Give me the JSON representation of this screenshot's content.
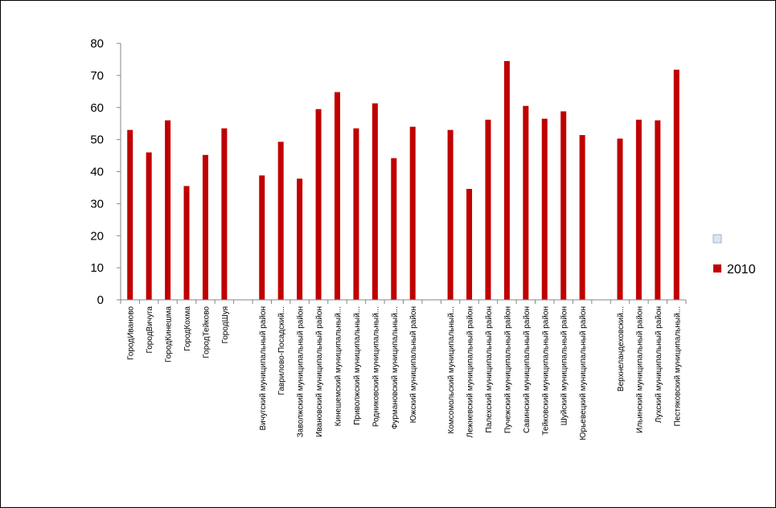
{
  "chart_data": {
    "type": "bar",
    "categories": [
      "ГородИваново",
      "ГородВичуга",
      "ГородКинешма",
      "ГородКохма",
      "ГородТейково",
      "ГородШуя",
      "",
      "Вичугский муниципальный район",
      "Гаврилово-Посадский...",
      "Заволжский муниципальный район",
      "Ивановский муниципальный район",
      "Кинешемский муниципальный...",
      "Приволжский муниципальный...",
      "Родниковский муниципальный...",
      "Фурмановский муниципальный...",
      "Южский муниципальный район",
      "",
      "Комсомольский муниципальный...",
      "Лежневский муниципальный район",
      "Палехский муниципальный район",
      "Пучежский муниципальный район",
      "Савинский муниципальный район",
      "Тейковский муниципальный район",
      "Шуйский муниципальный район",
      "Юрьевецкий муниципальный район",
      "",
      "Верхнеландеховский...",
      "Ильинский муниципальный район",
      "Лухский муниципальный район",
      "Пестяковский муниципальный..."
    ],
    "series": [
      {
        "name": "2010",
        "color": "#c00000",
        "values": [
          53.0,
          46.0,
          56.0,
          35.5,
          45.2,
          53.5,
          null,
          38.8,
          49.3,
          37.8,
          59.5,
          64.8,
          53.5,
          61.3,
          44.2,
          54.0,
          null,
          53.0,
          34.6,
          56.2,
          74.5,
          60.5,
          56.5,
          58.8,
          51.4,
          null,
          50.3,
          56.2,
          56.0,
          71.8
        ]
      }
    ],
    "empty_series": {
      "name": "",
      "color": "#dce6f2"
    },
    "ylim": [
      0,
      80
    ],
    "yticks": [
      "0",
      "10",
      "20",
      "30",
      "40",
      "50",
      "60",
      "70",
      "80"
    ],
    "grid": false,
    "legend_position": "right"
  }
}
